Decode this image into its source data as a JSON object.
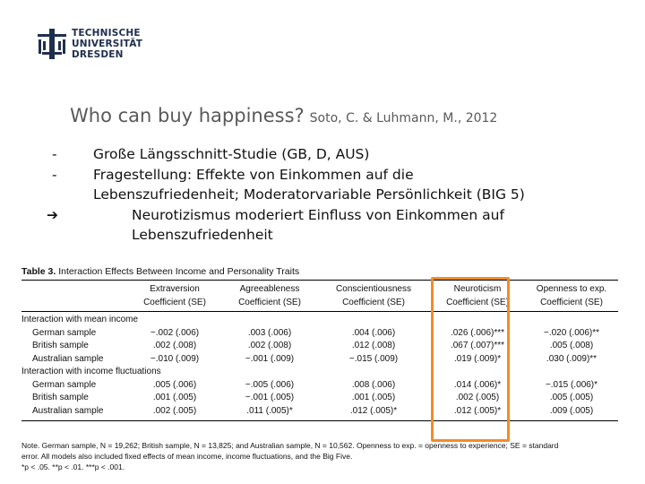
{
  "logo": {
    "lines": [
      "TECHNISCHE",
      "UNIVERSITÄT",
      "DRESDEN"
    ]
  },
  "slide": {
    "title": "Who can buy happiness?",
    "citation": "Soto, C. & Luhmann, M., 2012",
    "bullets": [
      {
        "mark": "-",
        "text": "Große Längsschnitt-Studie (GB, D, AUS)"
      },
      {
        "mark": "-",
        "text": "Fragestellung: Effekte von Einkommen auf die"
      },
      {
        "mark": "",
        "text": "Lebenszufriedenheit; Moderatorvariable Persönlichkeit (BIG 5)"
      },
      {
        "mark": "➔",
        "text": "Neurotizismus moderiert Einfluss von Einkommen auf"
      },
      {
        "mark": "",
        "text": "Lebenszufriedenheit"
      }
    ]
  },
  "table": {
    "title_bold": "Table 3.",
    "title_rest": "Interaction Effects Between Income and Personality Traits",
    "columns": [
      {
        "name": "Extraversion",
        "sub": "Coefficient (SE)"
      },
      {
        "name": "Agreeableness",
        "sub": "Coefficient (SE)"
      },
      {
        "name": "Conscientiousness",
        "sub": "Coefficient (SE)"
      },
      {
        "name": "Neuroticism",
        "sub": "Coefficient (SE)"
      },
      {
        "name": "Openness to exp.",
        "sub": "Coefficient (SE)"
      }
    ],
    "groups": [
      {
        "label": "Interaction with mean income",
        "rows": [
          {
            "label": "German sample",
            "cells": [
              "−.002 (.006)",
              ".003 (.006)",
              ".004 (.006)",
              ".026 (.006)***",
              "−.020 (.006)**"
            ]
          },
          {
            "label": "British sample",
            "cells": [
              ".002 (.008)",
              ".002 (.008)",
              ".012 (.008)",
              ".067 (.007)***",
              ".005 (.008)"
            ]
          },
          {
            "label": "Australian sample",
            "cells": [
              "−.010 (.009)",
              "−.001 (.009)",
              "−.015 (.009)",
              ".019 (.009)*",
              ".030 (.009)**"
            ]
          }
        ]
      },
      {
        "label": "Interaction with income fluctuations",
        "rows": [
          {
            "label": "German sample",
            "cells": [
              ".005 (.006)",
              "−.005 (.006)",
              ".008 (.006)",
              ".014 (.006)*",
              "−.015 (.006)*"
            ]
          },
          {
            "label": "British sample",
            "cells": [
              ".001 (.005)",
              "−.001 (.005)",
              ".001 (.005)",
              ".002 (.005)",
              ".005 (.005)"
            ]
          },
          {
            "label": "Australian sample",
            "cells": [
              ".002 (.005)",
              ".011 (.005)*",
              ".012 (.005)*",
              ".012 (.005)*",
              ".009 (.005)"
            ]
          }
        ]
      }
    ],
    "note_lines": [
      "Note. German sample, N = 19,262; British sample, N = 13,825; and Australian sample, N = 10,562. Openness to exp. = openness to experience; SE = standard",
      "error. All models also included fixed effects of mean income, income fluctuations, and the Big Five.",
      "*p < .05. **p < .01. ***p < .001."
    ]
  },
  "colors": {
    "highlight": "#f28c28",
    "title_gray": "#595959",
    "logo_navy": "#1f2f4f"
  }
}
